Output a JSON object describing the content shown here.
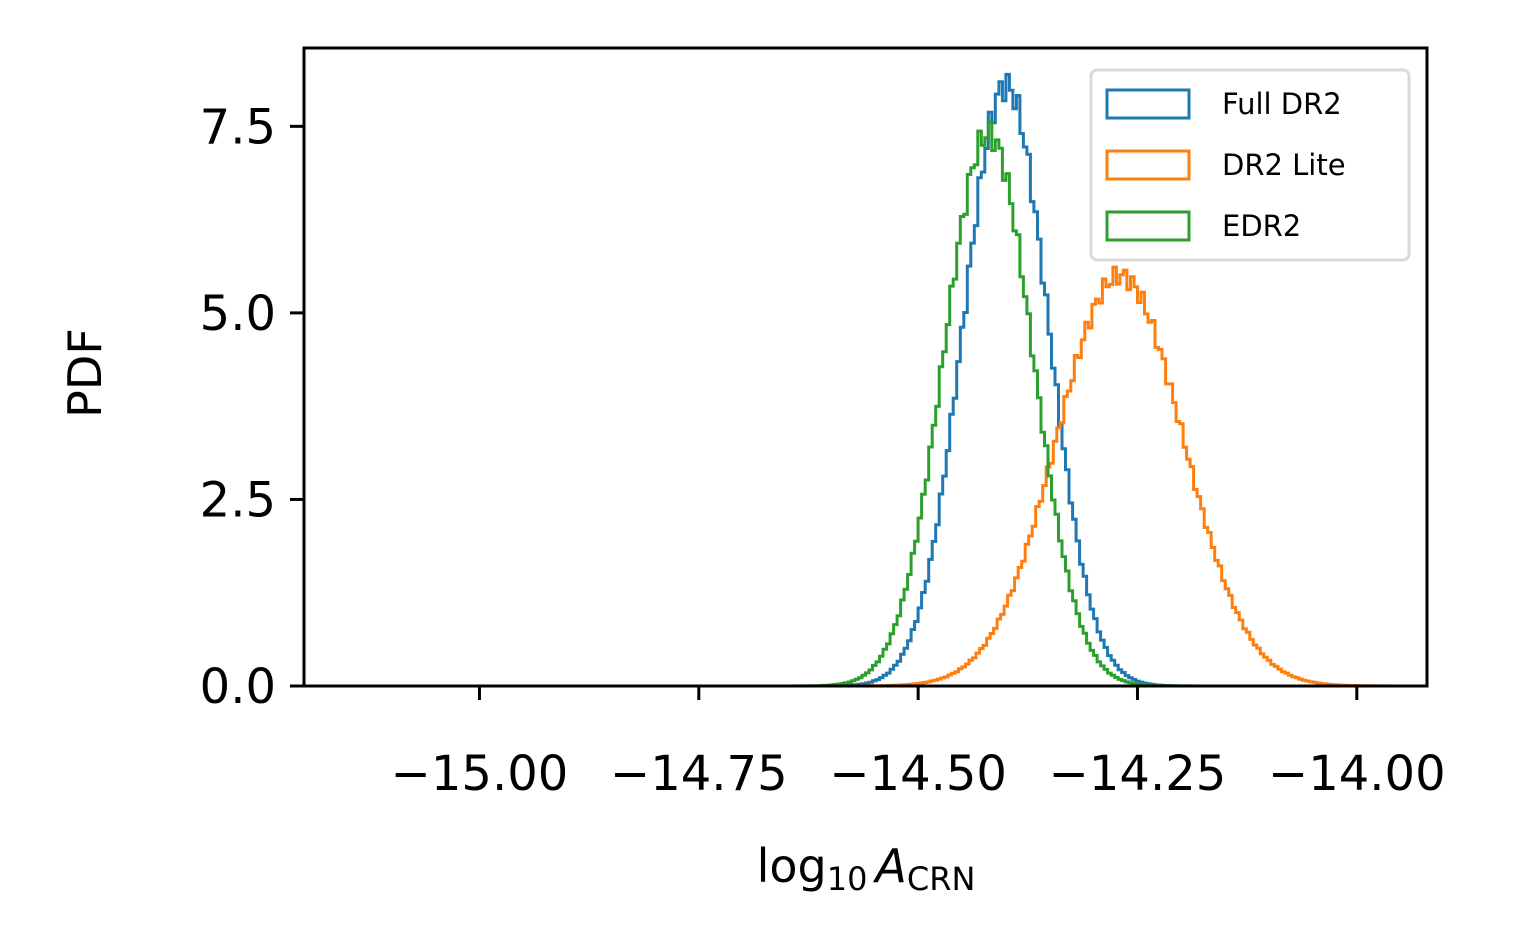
{
  "chart_data": {
    "type": "histogram-step",
    "xlabel": {
      "base": "log",
      "sub1": "10",
      "var": "A",
      "sub2": "CRN"
    },
    "ylabel": "PDF",
    "xlim": [
      -15.2,
      -13.92
    ],
    "ylim": [
      0,
      8.55
    ],
    "xticks": [
      -15.0,
      -14.75,
      -14.5,
      -14.25,
      -14.0
    ],
    "xtick_labels": [
      "−15.00",
      "−14.75",
      "−14.50",
      "−14.25",
      "−14.00"
    ],
    "yticks": [
      0.0,
      2.5,
      5.0,
      7.5
    ],
    "ytick_labels": [
      "0.0",
      "2.5",
      "5.0",
      "7.5"
    ],
    "grid": false,
    "legend_position": "top-right",
    "series": [
      {
        "name": "Full DR2",
        "color": "#1f77b4",
        "mu": -14.4,
        "sigma": 0.0485,
        "amplitude": 8.05,
        "min": -14.68,
        "max": -14.1,
        "hist": [
          [
            -14.68,
            0.01
          ],
          [
            -14.65,
            0.05
          ],
          [
            -14.62,
            0.11
          ],
          [
            -14.6,
            0.2
          ],
          [
            -14.58,
            0.35
          ],
          [
            -14.56,
            0.6
          ],
          [
            -14.54,
            1.0
          ],
          [
            -14.52,
            1.65
          ],
          [
            -14.5,
            2.6
          ],
          [
            -14.48,
            3.85
          ],
          [
            -14.46,
            5.2
          ],
          [
            -14.44,
            6.5
          ],
          [
            -14.42,
            7.5
          ],
          [
            -14.41,
            7.8
          ],
          [
            -14.4,
            8.05
          ],
          [
            -14.39,
            7.95
          ],
          [
            -14.38,
            7.7
          ],
          [
            -14.36,
            6.8
          ],
          [
            -14.34,
            5.5
          ],
          [
            -14.32,
            4.0
          ],
          [
            -14.3,
            2.6
          ],
          [
            -14.28,
            1.5
          ],
          [
            -14.26,
            0.75
          ],
          [
            -14.24,
            0.33
          ],
          [
            -14.22,
            0.13
          ],
          [
            -14.2,
            0.05
          ],
          [
            -14.15,
            0.01
          ]
        ]
      },
      {
        "name": "DR2 Lite",
        "color": "#ff7f0e",
        "mu": -14.27,
        "sigma": 0.072,
        "amplitude": 5.5,
        "min": -15.05,
        "max": -13.96,
        "hist": [
          [
            -15.05,
            0.0
          ],
          [
            -14.8,
            0.02
          ],
          [
            -14.7,
            0.05
          ],
          [
            -14.6,
            0.1
          ],
          [
            -14.55,
            0.18
          ],
          [
            -14.5,
            0.32
          ],
          [
            -14.46,
            0.55
          ],
          [
            -14.42,
            0.9
          ],
          [
            -14.38,
            1.45
          ],
          [
            -14.36,
            1.9
          ],
          [
            -14.34,
            2.5
          ],
          [
            -14.32,
            3.2
          ],
          [
            -14.3,
            4.05
          ],
          [
            -14.29,
            4.55
          ],
          [
            -14.28,
            5.05
          ],
          [
            -14.27,
            5.5
          ],
          [
            -14.26,
            5.45
          ],
          [
            -14.25,
            5.25
          ],
          [
            -14.23,
            4.85
          ],
          [
            -14.21,
            4.2
          ],
          [
            -14.19,
            3.5
          ],
          [
            -14.17,
            2.75
          ],
          [
            -14.15,
            2.0
          ],
          [
            -14.13,
            1.3
          ],
          [
            -14.11,
            0.75
          ],
          [
            -14.09,
            0.35
          ],
          [
            -14.07,
            0.12
          ],
          [
            -14.03,
            0.02
          ],
          [
            -13.96,
            0.0
          ]
        ]
      },
      {
        "name": "EDR2",
        "color": "#2ca02c",
        "mu": -14.42,
        "sigma": 0.0505,
        "amplitude": 7.4,
        "min": -14.72,
        "max": -14.15,
        "hist": [
          [
            -14.72,
            0.02
          ],
          [
            -14.68,
            0.08
          ],
          [
            -14.65,
            0.2
          ],
          [
            -14.62,
            0.38
          ],
          [
            -14.6,
            0.6
          ],
          [
            -14.58,
            0.95
          ],
          [
            -14.56,
            1.45
          ],
          [
            -14.54,
            2.2
          ],
          [
            -14.52,
            3.15
          ],
          [
            -14.5,
            4.3
          ],
          [
            -14.48,
            5.6
          ],
          [
            -14.46,
            6.6
          ],
          [
            -14.44,
            7.2
          ],
          [
            -14.42,
            7.4
          ],
          [
            -14.41,
            7.3
          ],
          [
            -14.4,
            7.0
          ],
          [
            -14.38,
            6.2
          ],
          [
            -14.36,
            5.0
          ],
          [
            -14.34,
            3.7
          ],
          [
            -14.32,
            2.5
          ],
          [
            -14.3,
            1.5
          ],
          [
            -14.28,
            0.8
          ],
          [
            -14.26,
            0.38
          ],
          [
            -14.24,
            0.15
          ],
          [
            -14.22,
            0.05
          ],
          [
            -14.18,
            0.01
          ]
        ]
      }
    ]
  }
}
